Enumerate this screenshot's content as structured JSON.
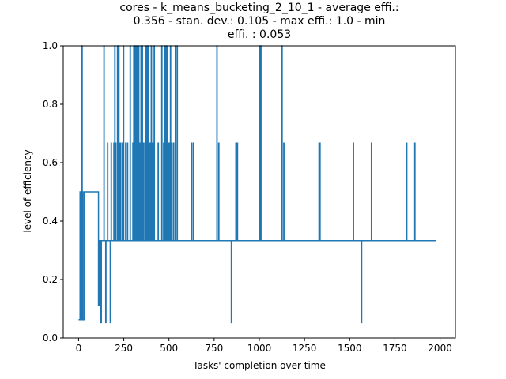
{
  "chart_data": {
    "type": "line",
    "title_lines": [
      "cores - k_means_bucketing_2_10_1 - average effi.:",
      "0.356 - stan. dev.: 0.105 - max effi.: 1.0 - min",
      "effi. : 0.053"
    ],
    "xlabel": "Tasks' completion over time",
    "ylabel": "level of efficiency",
    "xlim": [
      -85,
      2085
    ],
    "ylim": [
      0.0,
      1.0
    ],
    "xticks": [
      0,
      250,
      500,
      750,
      1000,
      1250,
      1500,
      1750,
      2000
    ],
    "xtick_labels": [
      "0",
      "250",
      "500",
      "750",
      "1000",
      "1250",
      "1500",
      "1750",
      "2000"
    ],
    "yticks": [
      0.0,
      0.2,
      0.4,
      0.6,
      0.8,
      1.0
    ],
    "ytick_labels": [
      "0.0",
      "0.2",
      "0.4",
      "0.6",
      "0.8",
      "1.0"
    ],
    "grid": false,
    "line_color": "#1f77b4",
    "series": [
      {
        "baseline": 0.333,
        "x_end": 1980,
        "initial_points": [
          [
            0,
            0.063
          ],
          [
            8,
            0.063
          ],
          [
            8,
            0.5
          ],
          [
            12,
            0.5
          ],
          [
            12,
            0.063
          ],
          [
            18,
            0.063
          ],
          [
            18,
            1.0
          ],
          [
            20,
            1.0
          ],
          [
            20,
            0.5
          ],
          [
            23,
            0.5
          ],
          [
            23,
            0.063
          ],
          [
            30,
            0.063
          ],
          [
            30,
            0.5
          ],
          [
            110,
            0.5
          ],
          [
            110,
            0.111
          ],
          [
            115,
            0.111
          ],
          [
            115,
            0.333
          ],
          [
            122,
            0.333
          ],
          [
            122,
            0.053
          ],
          [
            126,
            0.053
          ],
          [
            126,
            0.333
          ]
        ],
        "spikes": [
          [
            140,
            1.0
          ],
          [
            150,
            0.053
          ],
          [
            160,
            0.667
          ],
          [
            175,
            0.053
          ],
          [
            180,
            0.667
          ],
          [
            195,
            0.667
          ],
          [
            200,
            1.0
          ],
          [
            205,
            0.667
          ],
          [
            215,
            1.0
          ],
          [
            222,
            1.0
          ],
          [
            230,
            0.667
          ],
          [
            240,
            0.667
          ],
          [
            248,
            1.0
          ],
          [
            260,
            0.667
          ],
          [
            270,
            0.667
          ],
          [
            285,
            1.0
          ],
          [
            300,
            0.667
          ],
          [
            305,
            1.0
          ],
          [
            312,
            1.0
          ],
          [
            318,
            1.0
          ],
          [
            325,
            1.0
          ],
          [
            332,
            1.0
          ],
          [
            338,
            0.667
          ],
          [
            345,
            1.0
          ],
          [
            352,
            1.0
          ],
          [
            360,
            0.667
          ],
          [
            370,
            1.0
          ],
          [
            378,
            1.0
          ],
          [
            385,
            1.0
          ],
          [
            395,
            0.667
          ],
          [
            402,
            1.0
          ],
          [
            410,
            0.667
          ],
          [
            418,
            1.0
          ],
          [
            440,
            0.667
          ],
          [
            460,
            1.0
          ],
          [
            470,
            0.667
          ],
          [
            478,
            1.0
          ],
          [
            485,
            1.0
          ],
          [
            492,
            1.0
          ],
          [
            500,
            0.667
          ],
          [
            508,
            1.0
          ],
          [
            515,
            0.667
          ],
          [
            525,
            0.667
          ],
          [
            535,
            1.0
          ],
          [
            545,
            1.0
          ],
          [
            625,
            0.667
          ],
          [
            635,
            0.667
          ],
          [
            765,
            1.0
          ],
          [
            775,
            0.667
          ],
          [
            845,
            0.053
          ],
          [
            870,
            0.667
          ],
          [
            878,
            0.667
          ],
          [
            1000,
            1.0
          ],
          [
            1008,
            1.0
          ],
          [
            1125,
            1.0
          ],
          [
            1135,
            0.667
          ],
          [
            1330,
            0.667
          ],
          [
            1335,
            0.667
          ],
          [
            1520,
            0.667
          ],
          [
            1565,
            0.053
          ],
          [
            1620,
            0.667
          ],
          [
            1815,
            0.667
          ],
          [
            1860,
            0.667
          ]
        ]
      }
    ]
  }
}
